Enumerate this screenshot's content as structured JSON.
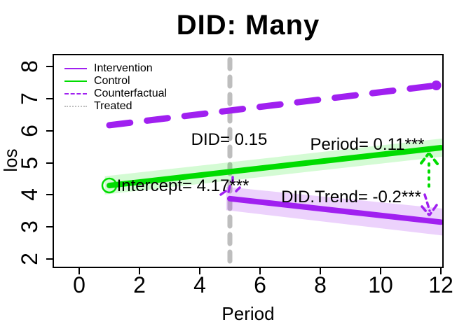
{
  "title": "DID: Many",
  "axes": {
    "x": {
      "label": "Period",
      "ticks": [
        "0",
        "2",
        "4",
        "6",
        "8",
        "10",
        "12"
      ]
    },
    "y": {
      "label": "los",
      "ticks_top_to_bottom": [
        "8",
        "7",
        "6",
        "5",
        "4",
        "3",
        "2"
      ]
    }
  },
  "legend": {
    "items": [
      {
        "label": "Intervention",
        "color": "#A020F0",
        "style": "solid"
      },
      {
        "label": "Control",
        "color": "#00DC00",
        "style": "solid"
      },
      {
        "label": "Counterfactual",
        "color": "#A020F0",
        "style": "dashed"
      },
      {
        "label": "Treated",
        "color": "#BEBEBE",
        "style": "dotted"
      }
    ]
  },
  "annotations": {
    "did": "DID= 0.15",
    "period": "Period= 0.11***",
    "intercept": "Intercept= 4.17***",
    "did_trend": "DID.Trend= -0.2***"
  },
  "colors": {
    "purple": "#A020F0",
    "green": "#00DC00",
    "gray": "#BEBEBE",
    "green_band": "rgba(0,230,0,0.17)",
    "purple_band": "rgba(160,32,240,0.2)"
  },
  "chart_data": {
    "type": "line",
    "title": "DID: Many",
    "xlabel": "Period",
    "ylabel": "los",
    "xlim": [
      -0.5,
      12.5
    ],
    "ylim": [
      1.75,
      8.25
    ],
    "x_ticks": [
      0,
      2,
      4,
      6,
      8,
      10,
      12
    ],
    "y_ticks": [
      2,
      3,
      4,
      5,
      6,
      7,
      8
    ],
    "intervention_start_x": 5,
    "estimates": {
      "DID": 0.15,
      "Period": 0.11,
      "Intercept": 4.17,
      "DID_Trend": -0.2
    },
    "grid": false,
    "legend_position": "top-left",
    "series": [
      {
        "name": "Intervention",
        "color": "#A020F0",
        "style": "solid",
        "points": [
          [
            5,
            3.88
          ],
          [
            12,
            3.15
          ]
        ],
        "band_hi": [
          [
            4.88,
            4.25
          ],
          [
            12.07,
            3.57
          ]
        ],
        "band_lo": [
          [
            4.88,
            3.52
          ],
          [
            12.07,
            2.73
          ]
        ],
        "band_color": "rgba(160,32,240,0.2)"
      },
      {
        "name": "Control",
        "color": "#00DC00",
        "style": "solid",
        "points": [
          [
            1,
            4.29
          ],
          [
            12,
            5.47
          ]
        ],
        "band_hi": [
          [
            0.85,
            4.58
          ],
          [
            12.07,
            5.76
          ]
        ],
        "band_lo": [
          [
            0.85,
            4.01
          ],
          [
            12.07,
            5.19
          ]
        ],
        "band_color": "rgba(0,230,0,0.17)",
        "marker_start": [
          1,
          4.29
        ]
      },
      {
        "name": "Counterfactual",
        "color": "#A020F0",
        "style": "dashed",
        "points": [
          [
            1,
            6.17
          ],
          [
            11.85,
            7.41
          ]
        ],
        "marker_end": [
          11.85,
          7.41
        ]
      },
      {
        "name": "Treated",
        "color": "#BEBEBE",
        "style": "vertical-dashed",
        "x": 5
      }
    ]
  }
}
